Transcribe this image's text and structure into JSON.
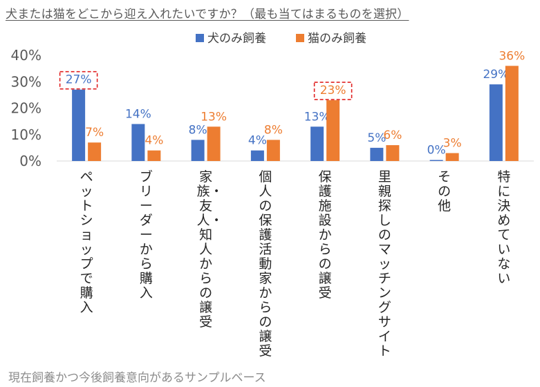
{
  "title": "犬または猫をどこから迎え入れたいですか？（最も当てはまるものを選択）",
  "footnote": "現在飼養かつ今後飼養意向があるサンプルベース",
  "chart_data": {
    "type": "bar",
    "title": "犬または猫をどこから迎え入れたいですか？（最も当てはまるものを選択）",
    "categories": [
      "ペットショップで購入",
      "ブリーダーから購入",
      "家族・友人・知人からの譲受",
      "個人の保護活動家からの譲受",
      "保護施設からの譲受",
      "里親探しのマッチングサイト",
      "その他",
      "特に決めていない"
    ],
    "series": [
      {
        "name": "犬のみ飼養",
        "color": "#4472c4",
        "values": [
          27,
          14,
          8,
          4,
          13,
          5,
          0,
          29
        ],
        "labels": [
          "27%",
          "14%",
          "8%",
          "4%",
          "13%",
          "5%",
          "0%",
          "29%"
        ]
      },
      {
        "name": "猫のみ飼養",
        "color": "#ed7d31",
        "values": [
          7,
          4,
          13,
          8,
          23,
          6,
          3,
          36
        ],
        "labels": [
          "7%",
          "4%",
          "13%",
          "8%",
          "23%",
          "6%",
          "3%",
          "36%"
        ]
      }
    ],
    "y_ticks": [
      "0%",
      "10%",
      "20%",
      "30%",
      "40%"
    ],
    "ylim": [
      0,
      40
    ],
    "legend_position": "top",
    "grid": false,
    "highlighted": [
      {
        "series": 0,
        "category": 0
      },
      {
        "series": 1,
        "category": 4
      }
    ]
  }
}
